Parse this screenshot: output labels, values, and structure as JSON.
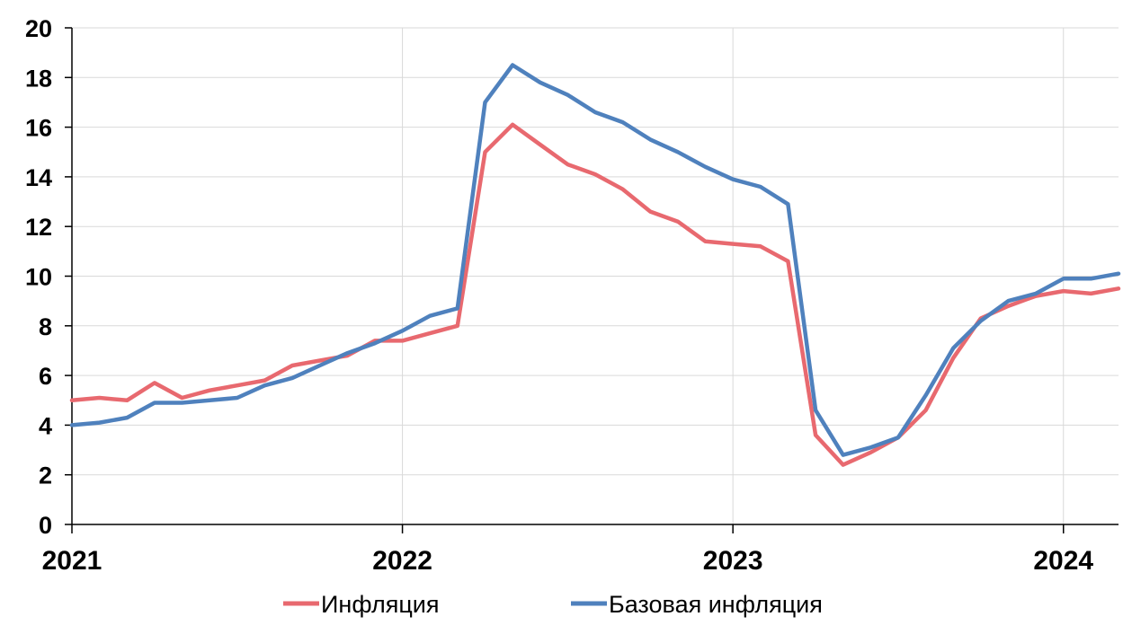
{
  "chart_data": {
    "type": "line",
    "ylim": [
      0,
      20
    ],
    "yticks": [
      "0",
      "2",
      "4",
      "6",
      "8",
      "10",
      "12",
      "14",
      "16",
      "18",
      "20"
    ],
    "xlim": [
      "2021-01",
      "2024-03"
    ],
    "xticks": [
      {
        "label": "2021",
        "x": "2021-01"
      },
      {
        "label": "2022",
        "x": "2022-01"
      },
      {
        "label": "2023",
        "x": "2023-01"
      },
      {
        "label": "2024",
        "x": "2024-01"
      }
    ],
    "grid": true,
    "legend": "bottom",
    "x": [
      "2021-01",
      "2021-02",
      "2021-03",
      "2021-04",
      "2021-05",
      "2021-06",
      "2021-07",
      "2021-08",
      "2021-09",
      "2021-10",
      "2021-11",
      "2021-12",
      "2022-01",
      "2022-02",
      "2022-03",
      "2022-04",
      "2022-05",
      "2022-06",
      "2022-07",
      "2022-08",
      "2022-09",
      "2022-10",
      "2022-11",
      "2022-12",
      "2023-01",
      "2023-02",
      "2023-03",
      "2023-04",
      "2023-05",
      "2023-06",
      "2023-07",
      "2023-08",
      "2023-09",
      "2023-10",
      "2023-11",
      "2023-12",
      "2024-01",
      "2024-02",
      "2024-03"
    ],
    "series": [
      {
        "name": "Инфляция",
        "color": "#e8696f",
        "values": [
          5.0,
          5.1,
          5.0,
          5.7,
          5.1,
          5.4,
          5.6,
          5.8,
          6.4,
          6.6,
          6.8,
          7.4,
          7.4,
          7.7,
          8.0,
          15.0,
          16.1,
          15.3,
          14.5,
          14.1,
          13.5,
          12.6,
          12.2,
          11.4,
          11.3,
          11.2,
          10.6,
          3.6,
          2.4,
          2.9,
          3.5,
          4.6,
          6.7,
          8.3,
          8.8,
          9.2,
          9.4,
          9.3,
          9.5
        ]
      },
      {
        "name": "Базовая инфляция",
        "color": "#4f81bd",
        "values": [
          4.0,
          4.1,
          4.3,
          4.9,
          4.9,
          5.0,
          5.1,
          5.6,
          5.9,
          6.4,
          6.9,
          7.3,
          7.8,
          8.4,
          8.7,
          17.0,
          18.5,
          17.8,
          17.3,
          16.6,
          16.2,
          15.5,
          15.0,
          14.4,
          13.9,
          13.6,
          12.9,
          4.6,
          2.8,
          3.1,
          3.5,
          5.2,
          7.1,
          8.2,
          9.0,
          9.3,
          9.9,
          9.9,
          10.1
        ]
      }
    ]
  }
}
